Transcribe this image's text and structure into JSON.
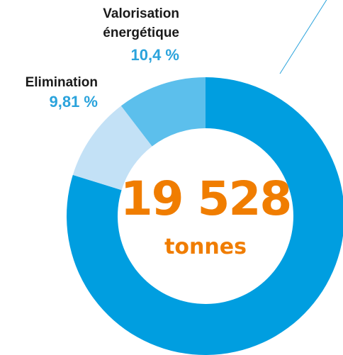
{
  "chart_data": {
    "type": "donut",
    "categories": [
      null,
      "Elimination",
      "Valorisation énergétique"
    ],
    "values": [
      79.79,
      9.81,
      10.4
    ],
    "value_labels": [
      null,
      "9,81 %",
      "10,4 %"
    ],
    "colors": [
      "#009ee0",
      "#c3e1f6",
      "#5cbfec"
    ],
    "annotations": [
      "19 528",
      "tonnes"
    ]
  }
}
